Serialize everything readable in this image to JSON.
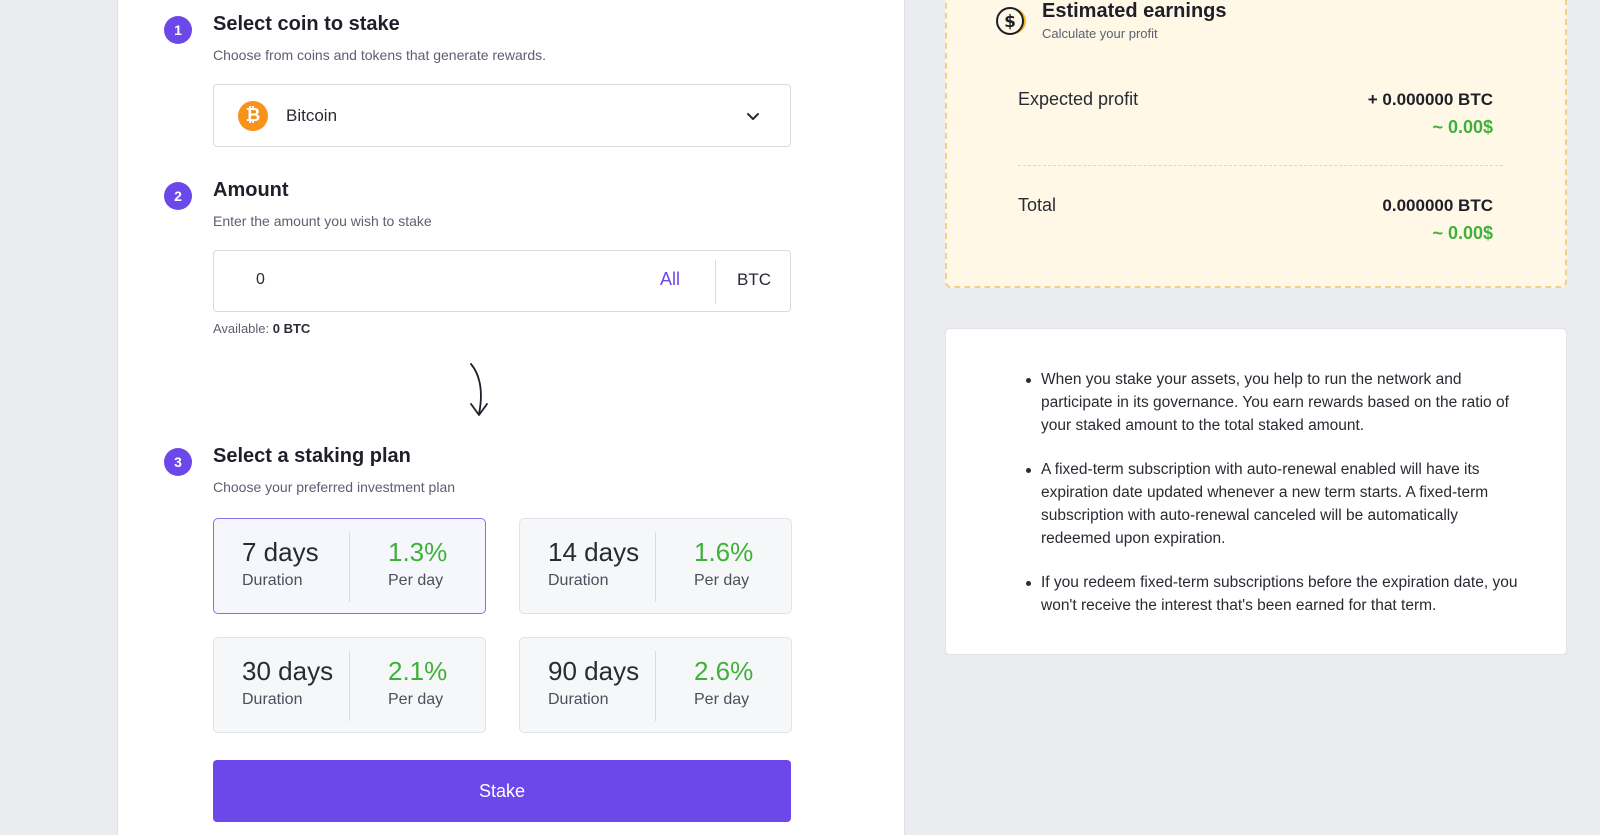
{
  "steps": [
    {
      "number": "1",
      "title": "Select coin to stake",
      "subtitle": "Choose from coins and tokens that generate rewards."
    },
    {
      "number": "2",
      "title": "Amount",
      "subtitle": "Enter the amount you wish to stake"
    },
    {
      "number": "3",
      "title": "Select a staking plan",
      "subtitle": "Choose your preferred investment plan"
    }
  ],
  "coin": {
    "name": "Bitcoin",
    "icon": "bitcoin-icon",
    "symbol_glyph": "₿",
    "color": "#f7931a"
  },
  "amount": {
    "value": "0",
    "all_label": "All",
    "unit": "BTC",
    "available_label": "Available:",
    "available_value": "0 BTC"
  },
  "plans": [
    {
      "days": "7 days",
      "duration_label": "Duration",
      "rate": "1.3%",
      "rate_label": "Per day",
      "selected": true
    },
    {
      "days": "14 days",
      "duration_label": "Duration",
      "rate": "1.6%",
      "rate_label": "Per day",
      "selected": false
    },
    {
      "days": "30 days",
      "duration_label": "Duration",
      "rate": "2.1%",
      "rate_label": "Per day",
      "selected": false
    },
    {
      "days": "90 days",
      "duration_label": "Duration",
      "rate": "2.6%",
      "rate_label": "Per day",
      "selected": false
    }
  ],
  "stake_button": "Stake",
  "earnings": {
    "title": "Estimated earnings",
    "subtitle": "Calculate your profit",
    "expected_label": "Expected profit",
    "expected_btc": "+ 0.000000 BTC",
    "expected_usd": "~ 0.00$",
    "total_label": "Total",
    "total_btc": "0.000000 BTC",
    "total_usd": "~ 0.00$"
  },
  "info": [
    "When you stake your assets, you help to run the network and participate in its governance. You earn rewards based on the ratio of your staked amount to the total staked amount.",
    "A fixed-term subscription with auto-renewal enabled will have its expiration date updated whenever a new term starts. A fixed-term subscription with auto-renewal canceled will be automatically redeemed upon expiration.",
    "If you redeem fixed-term subscriptions before the expiration date, you won't receive the interest that's been earned for that term."
  ],
  "colors": {
    "accent": "#6c47ea",
    "positive": "#3fb13a",
    "earnings_bg": "#fff8e6",
    "bitcoin": "#f7931a"
  }
}
